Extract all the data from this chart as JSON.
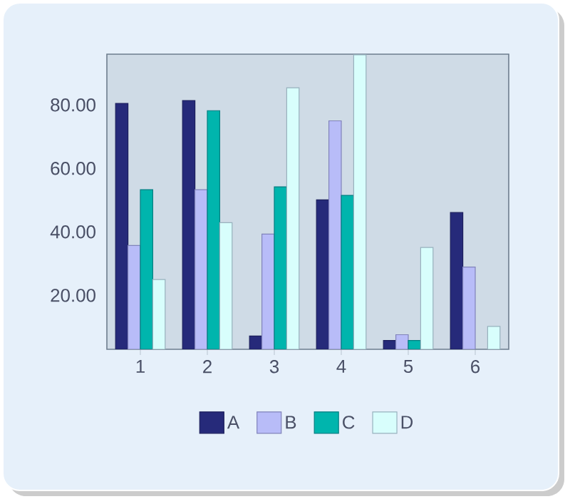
{
  "chart_data": {
    "type": "bar",
    "categories": [
      "1",
      "2",
      "3",
      "4",
      "5",
      "6"
    ],
    "series": [
      {
        "name": "A",
        "color": "#262a7a",
        "values": [
          80.5,
          81.4,
          7.2,
          50.1,
          5.8,
          46.1
        ]
      },
      {
        "name": "B",
        "color": "#b8bcf8",
        "values": [
          35.7,
          53.3,
          39.3,
          75.0,
          7.6,
          28.9
        ]
      },
      {
        "name": "C",
        "color": "#00b5ad",
        "values": [
          53.3,
          78.2,
          54.2,
          51.5,
          5.8,
          null
        ]
      },
      {
        "name": "D",
        "color": "#d8fefc",
        "values": [
          25.0,
          42.9,
          85.4,
          95.8,
          35.1,
          10.2
        ]
      }
    ],
    "ylim": [
      3,
      96
    ],
    "yticks": [
      {
        "value": 20,
        "label": "20.00"
      },
      {
        "value": 40,
        "label": "40.00"
      },
      {
        "value": 60,
        "label": "60.00"
      },
      {
        "value": 80,
        "label": "80.00"
      }
    ],
    "grid": false,
    "legend": "bottom"
  }
}
